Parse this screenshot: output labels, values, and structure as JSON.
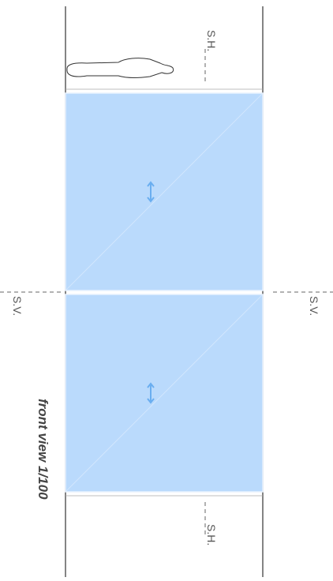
{
  "labels": {
    "section_h_top": "S.H.",
    "section_v_left": "S.V.",
    "section_v_right": "S.V.",
    "section_h_bottom": "S.H.",
    "caption": "front view 1/100"
  }
}
